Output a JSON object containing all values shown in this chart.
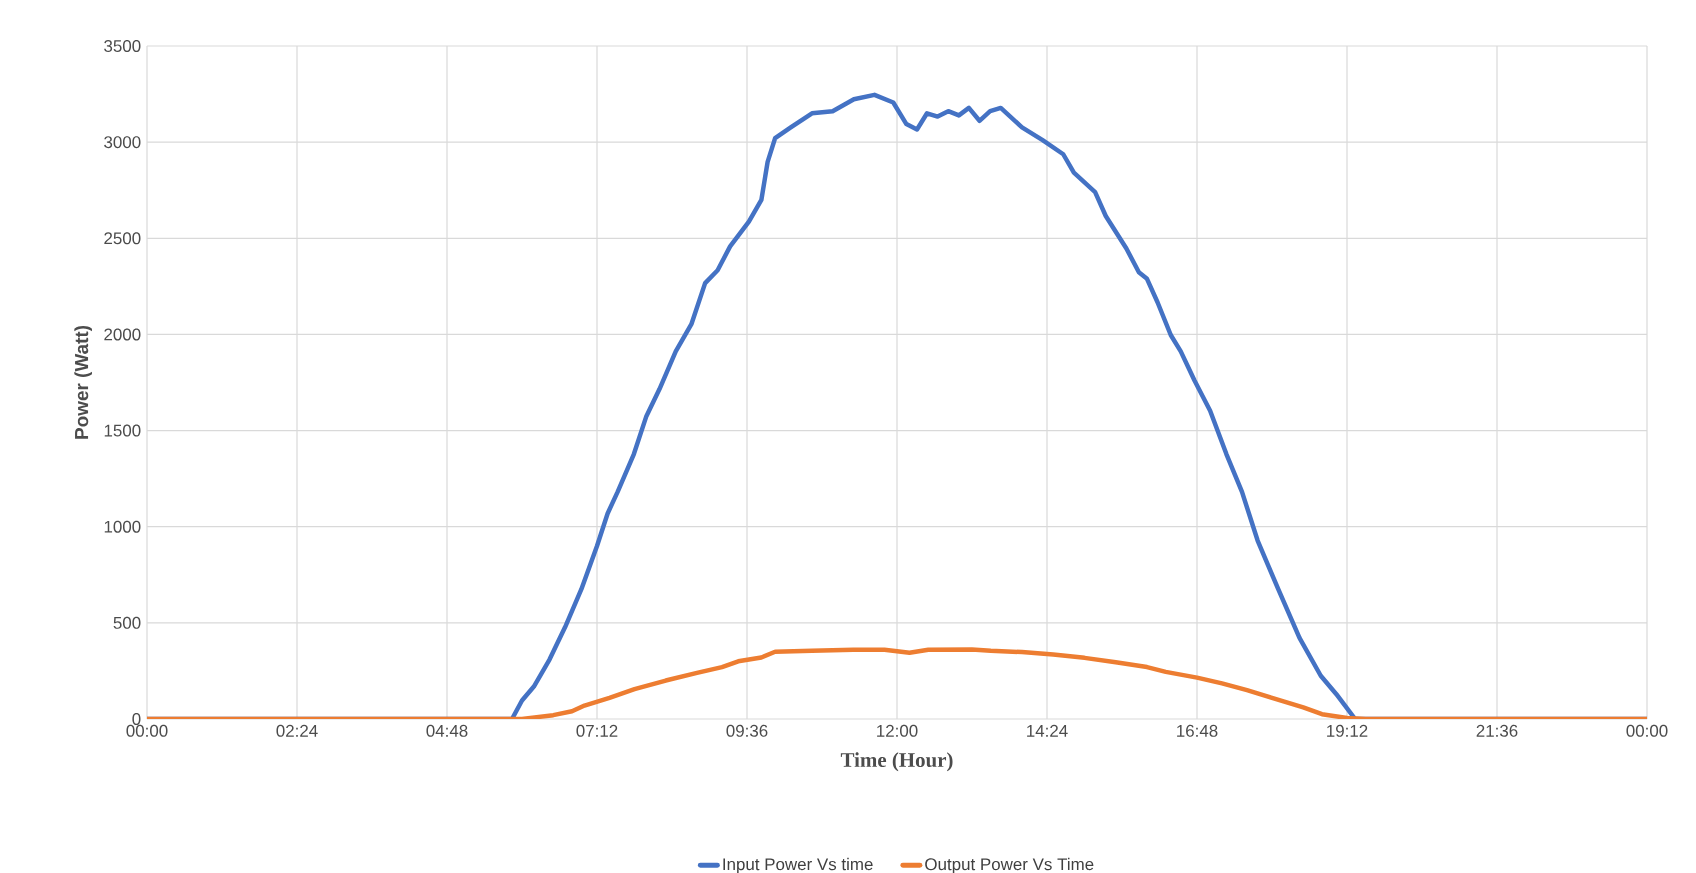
{
  "chart_data": {
    "type": "line",
    "xlabel": "Time (Hour)",
    "ylabel": "Power (Watt)",
    "xlim": [
      0,
      24
    ],
    "ylim": [
      0,
      3500
    ],
    "xticks": [
      {
        "value": 0,
        "label": "00:00"
      },
      {
        "value": 2.4,
        "label": "02:24"
      },
      {
        "value": 4.8,
        "label": "04:48"
      },
      {
        "value": 7.2,
        "label": "07:12"
      },
      {
        "value": 9.6,
        "label": "09:36"
      },
      {
        "value": 12,
        "label": "12:00"
      },
      {
        "value": 14.4,
        "label": "14:24"
      },
      {
        "value": 16.8,
        "label": "16:48"
      },
      {
        "value": 19.2,
        "label": "19:12"
      },
      {
        "value": 21.6,
        "label": "21:36"
      },
      {
        "value": 24,
        "label": "00:00"
      }
    ],
    "yticks": [
      0,
      500,
      1000,
      1500,
      2000,
      2500,
      3000,
      3500
    ],
    "grid": true,
    "legend": "bottom",
    "marker": "none",
    "line_style": "solid",
    "series": [
      {
        "name": "Input Power Vs time",
        "color": "#4472c4",
        "x": [
          0,
          5.84,
          6.0,
          6.19,
          6.44,
          6.69,
          6.95,
          7.2,
          7.37,
          7.53,
          7.79,
          7.99,
          8.2,
          8.46,
          8.71,
          8.93,
          9.13,
          9.33,
          9.63,
          9.83,
          9.93,
          10.05,
          10.3,
          10.64,
          10.97,
          11.31,
          11.64,
          11.94,
          12.15,
          12.32,
          12.48,
          12.65,
          12.82,
          12.99,
          13.15,
          13.32,
          13.49,
          13.66,
          14.0,
          14.33,
          14.66,
          14.83,
          15.17,
          15.34,
          15.67,
          15.87,
          16.0,
          16.17,
          16.38,
          16.54,
          16.76,
          17.01,
          17.27,
          17.52,
          17.77,
          18.1,
          18.44,
          18.78,
          19.03,
          19.33,
          24
        ],
        "values": [
          0,
          0,
          96,
          169,
          309,
          478,
          675,
          900,
          1069,
          1181,
          1378,
          1575,
          1716,
          1912,
          2053,
          2267,
          2334,
          2458,
          2587,
          2700,
          2897,
          3021,
          3077,
          3150,
          3161,
          3223,
          3246,
          3206,
          3094,
          3066,
          3150,
          3133,
          3161,
          3139,
          3178,
          3111,
          3161,
          3178,
          3077,
          3010,
          2937,
          2841,
          2740,
          2616,
          2447,
          2323,
          2289,
          2166,
          1997,
          1912,
          1760,
          1603,
          1378,
          1181,
          928,
          675,
          422,
          225,
          129,
          0,
          0
        ]
      },
      {
        "name": "Output Power Vs Time",
        "color": "#ed7d31",
        "x": [
          0,
          6.0,
          6.5,
          6.8,
          7.0,
          7.4,
          7.8,
          8.3,
          8.8,
          9.2,
          9.46,
          9.83,
          10.05,
          10.64,
          11.3,
          11.8,
          12.2,
          12.5,
          13.2,
          13.5,
          14.0,
          14.5,
          15.0,
          15.5,
          16.0,
          16.3,
          16.8,
          17.2,
          17.6,
          18.0,
          18.5,
          18.8,
          19.2,
          19.5,
          24
        ],
        "values": [
          0,
          0,
          20,
          40,
          70,
          110,
          155,
          200,
          240,
          270,
          300,
          320,
          350,
          355,
          360,
          360,
          345,
          360,
          362,
          355,
          348,
          335,
          318,
          295,
          270,
          245,
          215,
          185,
          150,
          110,
          60,
          25,
          5,
          0,
          0
        ]
      }
    ]
  }
}
